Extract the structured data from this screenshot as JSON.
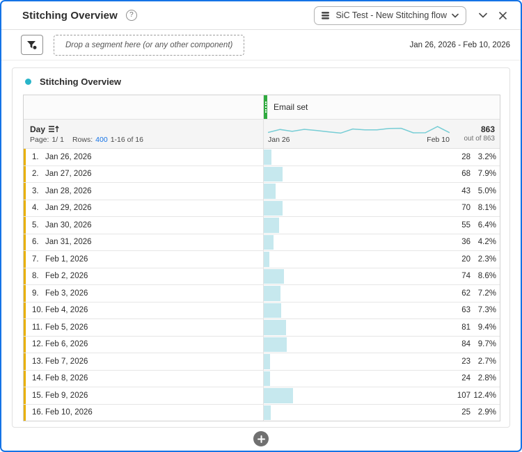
{
  "header": {
    "title": "Stitching Overview",
    "help_glyph": "?",
    "dataview_selector": "SiC Test - New Stitching flow"
  },
  "toolbar": {
    "drop_zone": "Drop a segment here (or any other component)",
    "date_range": "Jan 26, 2026 - Feb 10, 2026"
  },
  "panel": {
    "title": "Stitching Overview",
    "column_header": "Email set",
    "dimension": "Day",
    "pagination": {
      "page_label": "Page:",
      "page_value": "1/ 1",
      "rows_label": "Rows:",
      "rows_value": "400",
      "range": "1-16 of 16"
    },
    "summary": {
      "total": "863",
      "out_of": "out of 863",
      "spark_start": "Jan 26",
      "spark_end": "Feb 10"
    }
  },
  "table": {
    "rows": [
      {
        "num": "1.",
        "date": "Jan 26, 2026",
        "value": 28,
        "pct": "3.2%"
      },
      {
        "num": "2.",
        "date": "Jan 27, 2026",
        "value": 68,
        "pct": "7.9%"
      },
      {
        "num": "3.",
        "date": "Jan 28, 2026",
        "value": 43,
        "pct": "5.0%"
      },
      {
        "num": "4.",
        "date": "Jan 29, 2026",
        "value": 70,
        "pct": "8.1%"
      },
      {
        "num": "5.",
        "date": "Jan 30, 2026",
        "value": 55,
        "pct": "6.4%"
      },
      {
        "num": "6.",
        "date": "Jan 31, 2026",
        "value": 36,
        "pct": "4.2%"
      },
      {
        "num": "7.",
        "date": "Feb 1, 2026",
        "value": 20,
        "pct": "2.3%"
      },
      {
        "num": "8.",
        "date": "Feb 2, 2026",
        "value": 74,
        "pct": "8.6%"
      },
      {
        "num": "9.",
        "date": "Feb 3, 2026",
        "value": 62,
        "pct": "7.2%"
      },
      {
        "num": "10.",
        "date": "Feb 4, 2026",
        "value": 63,
        "pct": "7.3%"
      },
      {
        "num": "11.",
        "date": "Feb 5, 2026",
        "value": 81,
        "pct": "9.4%"
      },
      {
        "num": "12.",
        "date": "Feb 6, 2026",
        "value": 84,
        "pct": "9.7%"
      },
      {
        "num": "13.",
        "date": "Feb 7, 2026",
        "value": 23,
        "pct": "2.7%"
      },
      {
        "num": "14.",
        "date": "Feb 8, 2026",
        "value": 24,
        "pct": "2.8%"
      },
      {
        "num": "15.",
        "date": "Feb 9, 2026",
        "value": 107,
        "pct": "12.4%"
      },
      {
        "num": "16.",
        "date": "Feb 10, 2026",
        "value": 25,
        "pct": "2.9%"
      }
    ]
  },
  "chart_data": {
    "type": "line",
    "title": "Email set sparkline",
    "x": [
      "Jan 26, 2026",
      "Jan 27, 2026",
      "Jan 28, 2026",
      "Jan 29, 2026",
      "Jan 30, 2026",
      "Jan 31, 2026",
      "Feb 1, 2026",
      "Feb 2, 2026",
      "Feb 3, 2026",
      "Feb 4, 2026",
      "Feb 5, 2026",
      "Feb 6, 2026",
      "Feb 7, 2026",
      "Feb 8, 2026",
      "Feb 9, 2026",
      "Feb 10, 2026"
    ],
    "series": [
      {
        "name": "Email set",
        "values": [
          28,
          68,
          43,
          70,
          55,
          36,
          20,
          74,
          62,
          63,
          81,
          84,
          23,
          24,
          107,
          25
        ]
      }
    ],
    "total": 863
  },
  "colors": {
    "accent": "#1473e6",
    "link": "#1473e6",
    "teal": "#29b5c9",
    "spark": "#76cdd5",
    "bar": "#c6e8ee",
    "stripe": "#e9b000",
    "green": "#2faa3f"
  }
}
